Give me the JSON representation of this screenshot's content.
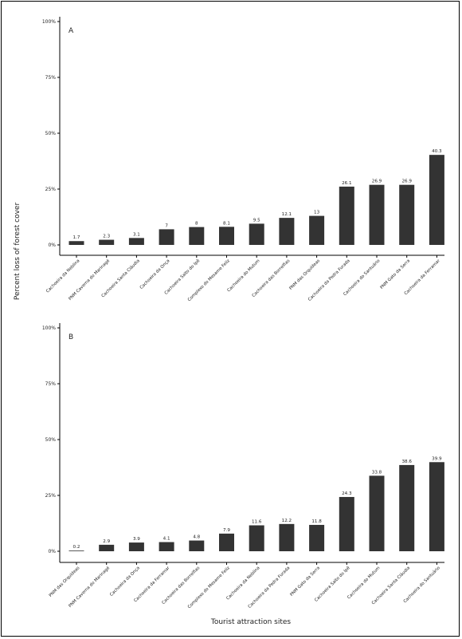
{
  "figure": {
    "ylabel": "Percent loss of forest cover",
    "xlabel": "Tourist attraction sites"
  },
  "chart_data": [
    {
      "type": "bar",
      "panel": "A",
      "ylim": [
        0,
        100
      ],
      "yticks": [
        "0%",
        "25%",
        "50%",
        "75%",
        "100%"
      ],
      "categories": [
        "Cachoeira da Neblina",
        "PNM Caverna do Marinagé",
        "Cachoeira Santa Cláudia",
        "Cachoeira da Onça",
        "Cachoeira Salto do Ipê",
        "Complexo do Mesame Feliz",
        "Cachoeira do Mutum",
        "Cachoeira das Borrelfias",
        "PNM das Orquídeas",
        "Cachoeira da Pedra Furada",
        "Cachoeira do Santuário",
        "PNM Gato da Serra",
        "Cachoeira da Ferramar"
      ],
      "values": [
        1.7,
        2.3,
        3.1,
        7,
        8,
        8.1,
        9.5,
        12.1,
        13,
        26.1,
        26.9,
        26.9,
        40.3
      ],
      "value_labels": [
        "1.7",
        "2.3",
        "3.1",
        "7",
        "8",
        "8.1",
        "9.5",
        "12.1",
        "13",
        "26.1",
        "26.9",
        "26.9",
        "40.3"
      ],
      "bar_color": "#333333"
    },
    {
      "type": "bar",
      "panel": "B",
      "ylim": [
        0,
        100
      ],
      "yticks": [
        "0%",
        "25%",
        "50%",
        "75%",
        "100%"
      ],
      "categories": [
        "PNM das Orquídeas",
        "PNM Caverna do Marinagé",
        "Cachoeira da Onça",
        "Cachoeira da Ferramar",
        "Cachoeira das Borrelfias",
        "Complexo do Mesame Feliz",
        "Cachoeira da Neblina",
        "Cachoeira da Pedra Furada",
        "PNM Gato da Serra",
        "Cachoeira Salto do Ipê",
        "Cachoeira do Mutum",
        "Cachoeira Santa Cláudia",
        "Cachoeira do Santuário"
      ],
      "values": [
        0.2,
        2.9,
        3.9,
        4.1,
        4.8,
        7.9,
        11.6,
        12.2,
        11.8,
        24.3,
        33.8,
        38.6,
        39.9
      ],
      "value_labels": [
        "0.2",
        "2.9",
        "3.9",
        "4.1",
        "4.8",
        "7.9",
        "11.6",
        "12.2",
        "11.8",
        "24.3",
        "33.8",
        "38.6",
        "39.9"
      ],
      "bar_color": "#333333"
    }
  ]
}
